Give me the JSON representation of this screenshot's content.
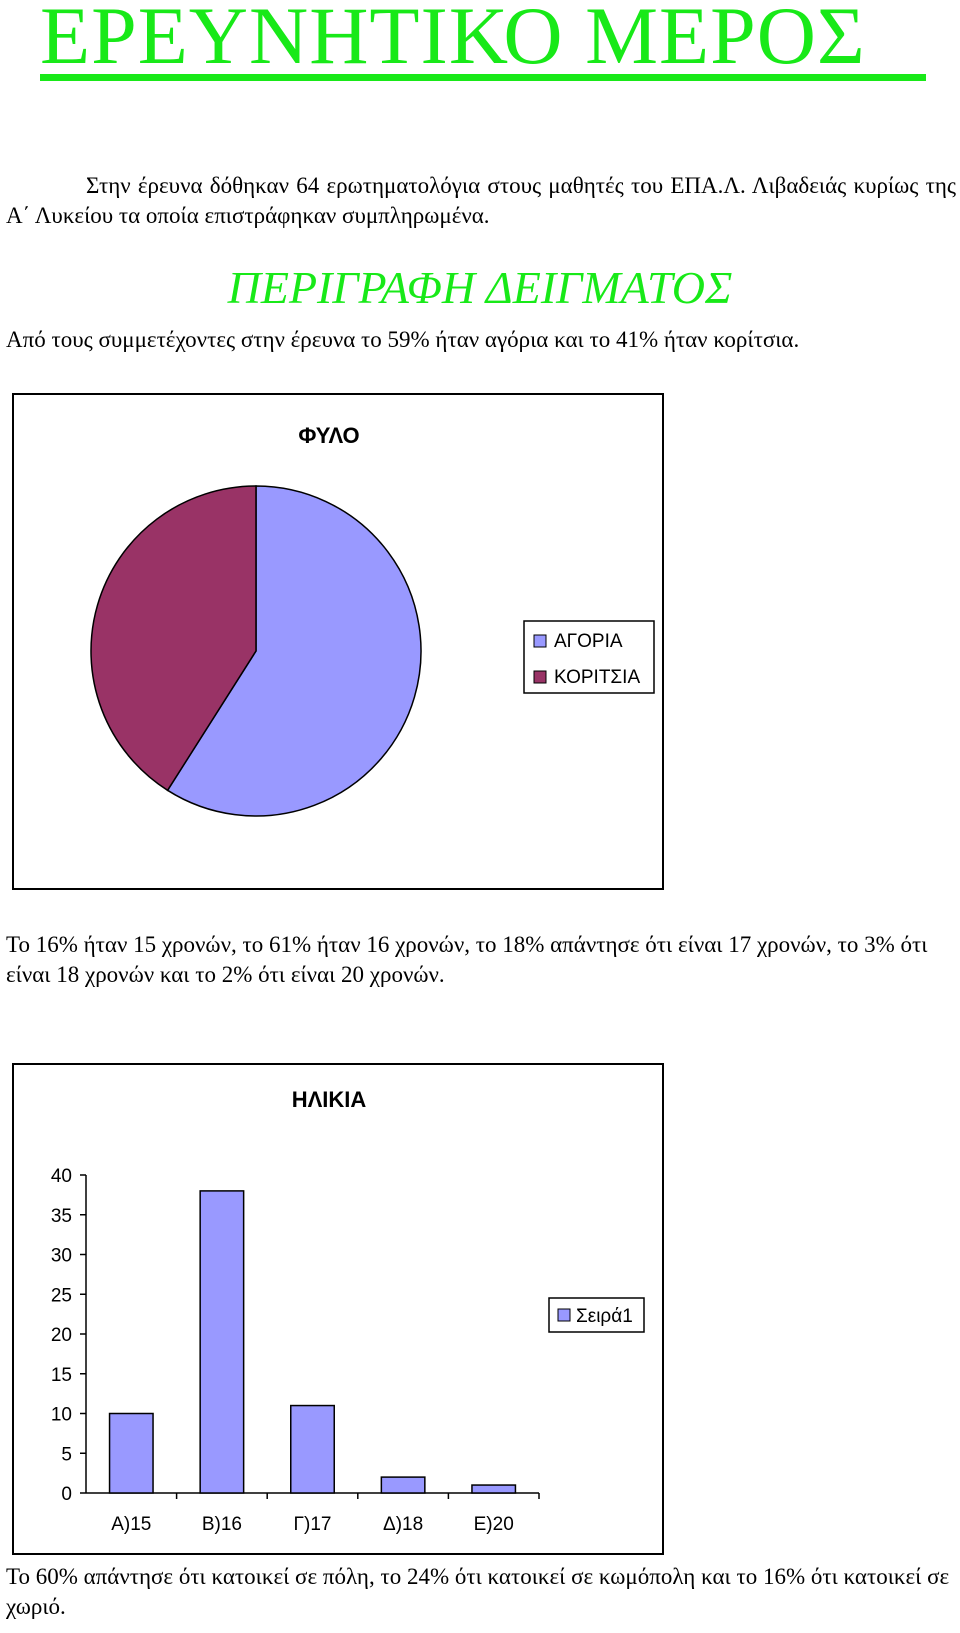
{
  "page": {
    "title": "ΕΡΕΥΝΗΤΙΚΟ ΜΕΡΟΣ",
    "intro": "Στην έρευνα δόθηκαν 64 ερωτηματολόγια στους μαθητές του ΕΠΑ.Λ. Λιβαδειάς κυρίως της Α΄ Λυκείου τα οποία επιστράφηκαν συμπληρωμένα.",
    "section_title": "ΠΕΡΙΓΡΑΦΗ ΔΕΙΓΜΑΤΟΣ",
    "gender_text": "Από τους συμμετέχοντες στην έρευνα το 59% ήταν αγόρια και το 41% ήταν κορίτσια.",
    "age_text": "Το 16% ήταν 15 χρονών, το 61% ήταν 16 χρονών, το 18% απάντησε ότι είναι 17 χρονών, το 3% ότι είναι 18 χρονών και το 2% ότι είναι 20 χρονών.",
    "residence_text": "Το 60% απάντησε ότι κατοικεί σε πόλη, το 24% ότι κατοικεί σε κωμόπολη και το 16% ότι κατοικεί σε χωριό.",
    "accent_color": "#18e918"
  },
  "chart_data": [
    {
      "type": "pie",
      "title": "ΦΥΛΟ",
      "categories": [
        "ΑΓΟΡΙΑ",
        "ΚΟΡΙΤΣΙΑ"
      ],
      "values": [
        59,
        41
      ],
      "colors": [
        "#9999ff",
        "#993366"
      ],
      "legend": "right"
    },
    {
      "type": "bar",
      "title": "ΗΛΙΚΙΑ",
      "categories": [
        "Α)15",
        "Β)16",
        "Γ)17",
        "Δ)18",
        "Ε)20"
      ],
      "series": [
        {
          "name": "Σειρά1",
          "values": [
            10,
            38,
            11,
            2,
            1
          ],
          "color": "#9999ff"
        }
      ],
      "ylim": [
        0,
        40
      ],
      "yticks": [
        0,
        5,
        10,
        15,
        20,
        25,
        30,
        35,
        40
      ],
      "grid": false,
      "legend": "right"
    }
  ]
}
